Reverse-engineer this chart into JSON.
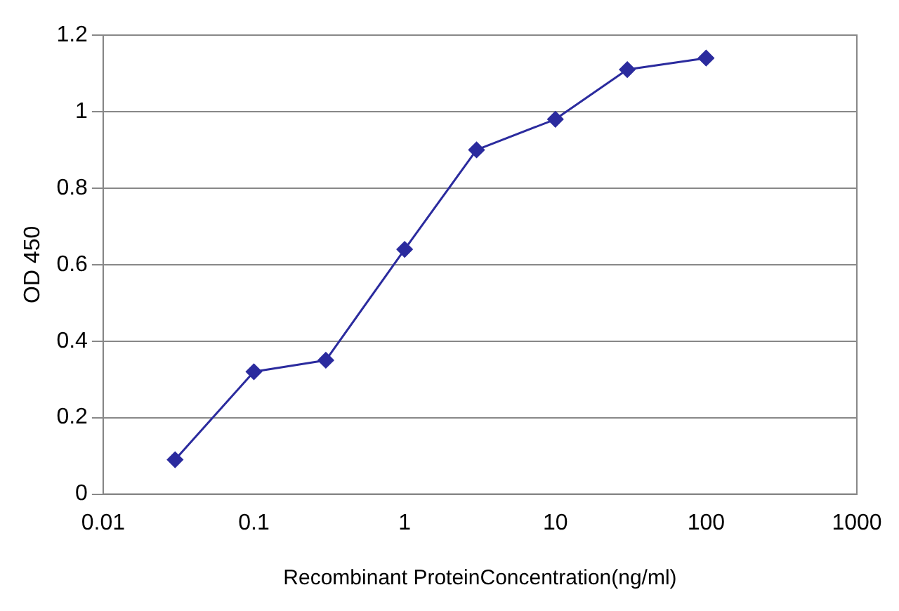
{
  "chart_data": {
    "type": "line",
    "xlabel": "Recombinant ProteinConcentration(ng/ml)",
    "ylabel": "OD 450",
    "x": [
      0.03,
      0.1,
      0.3,
      1,
      3,
      10,
      30,
      100
    ],
    "series": [
      {
        "color": "#2b2b9e",
        "values": [
          0.09,
          0.32,
          0.35,
          0.64,
          0.9,
          0.98,
          1.11,
          1.14
        ]
      }
    ],
    "log": "x",
    "xlim": [
      0.01,
      1000
    ],
    "xticks": [
      0.01,
      0.1,
      1,
      10,
      100,
      1000
    ],
    "ylim": [
      0,
      1.2
    ],
    "yticks": [
      0,
      0.2,
      0.4,
      0.6,
      0.8,
      1,
      1.2
    ],
    "grid": "y",
    "legend": false,
    "marker": "diamond",
    "line_style": "solid"
  }
}
